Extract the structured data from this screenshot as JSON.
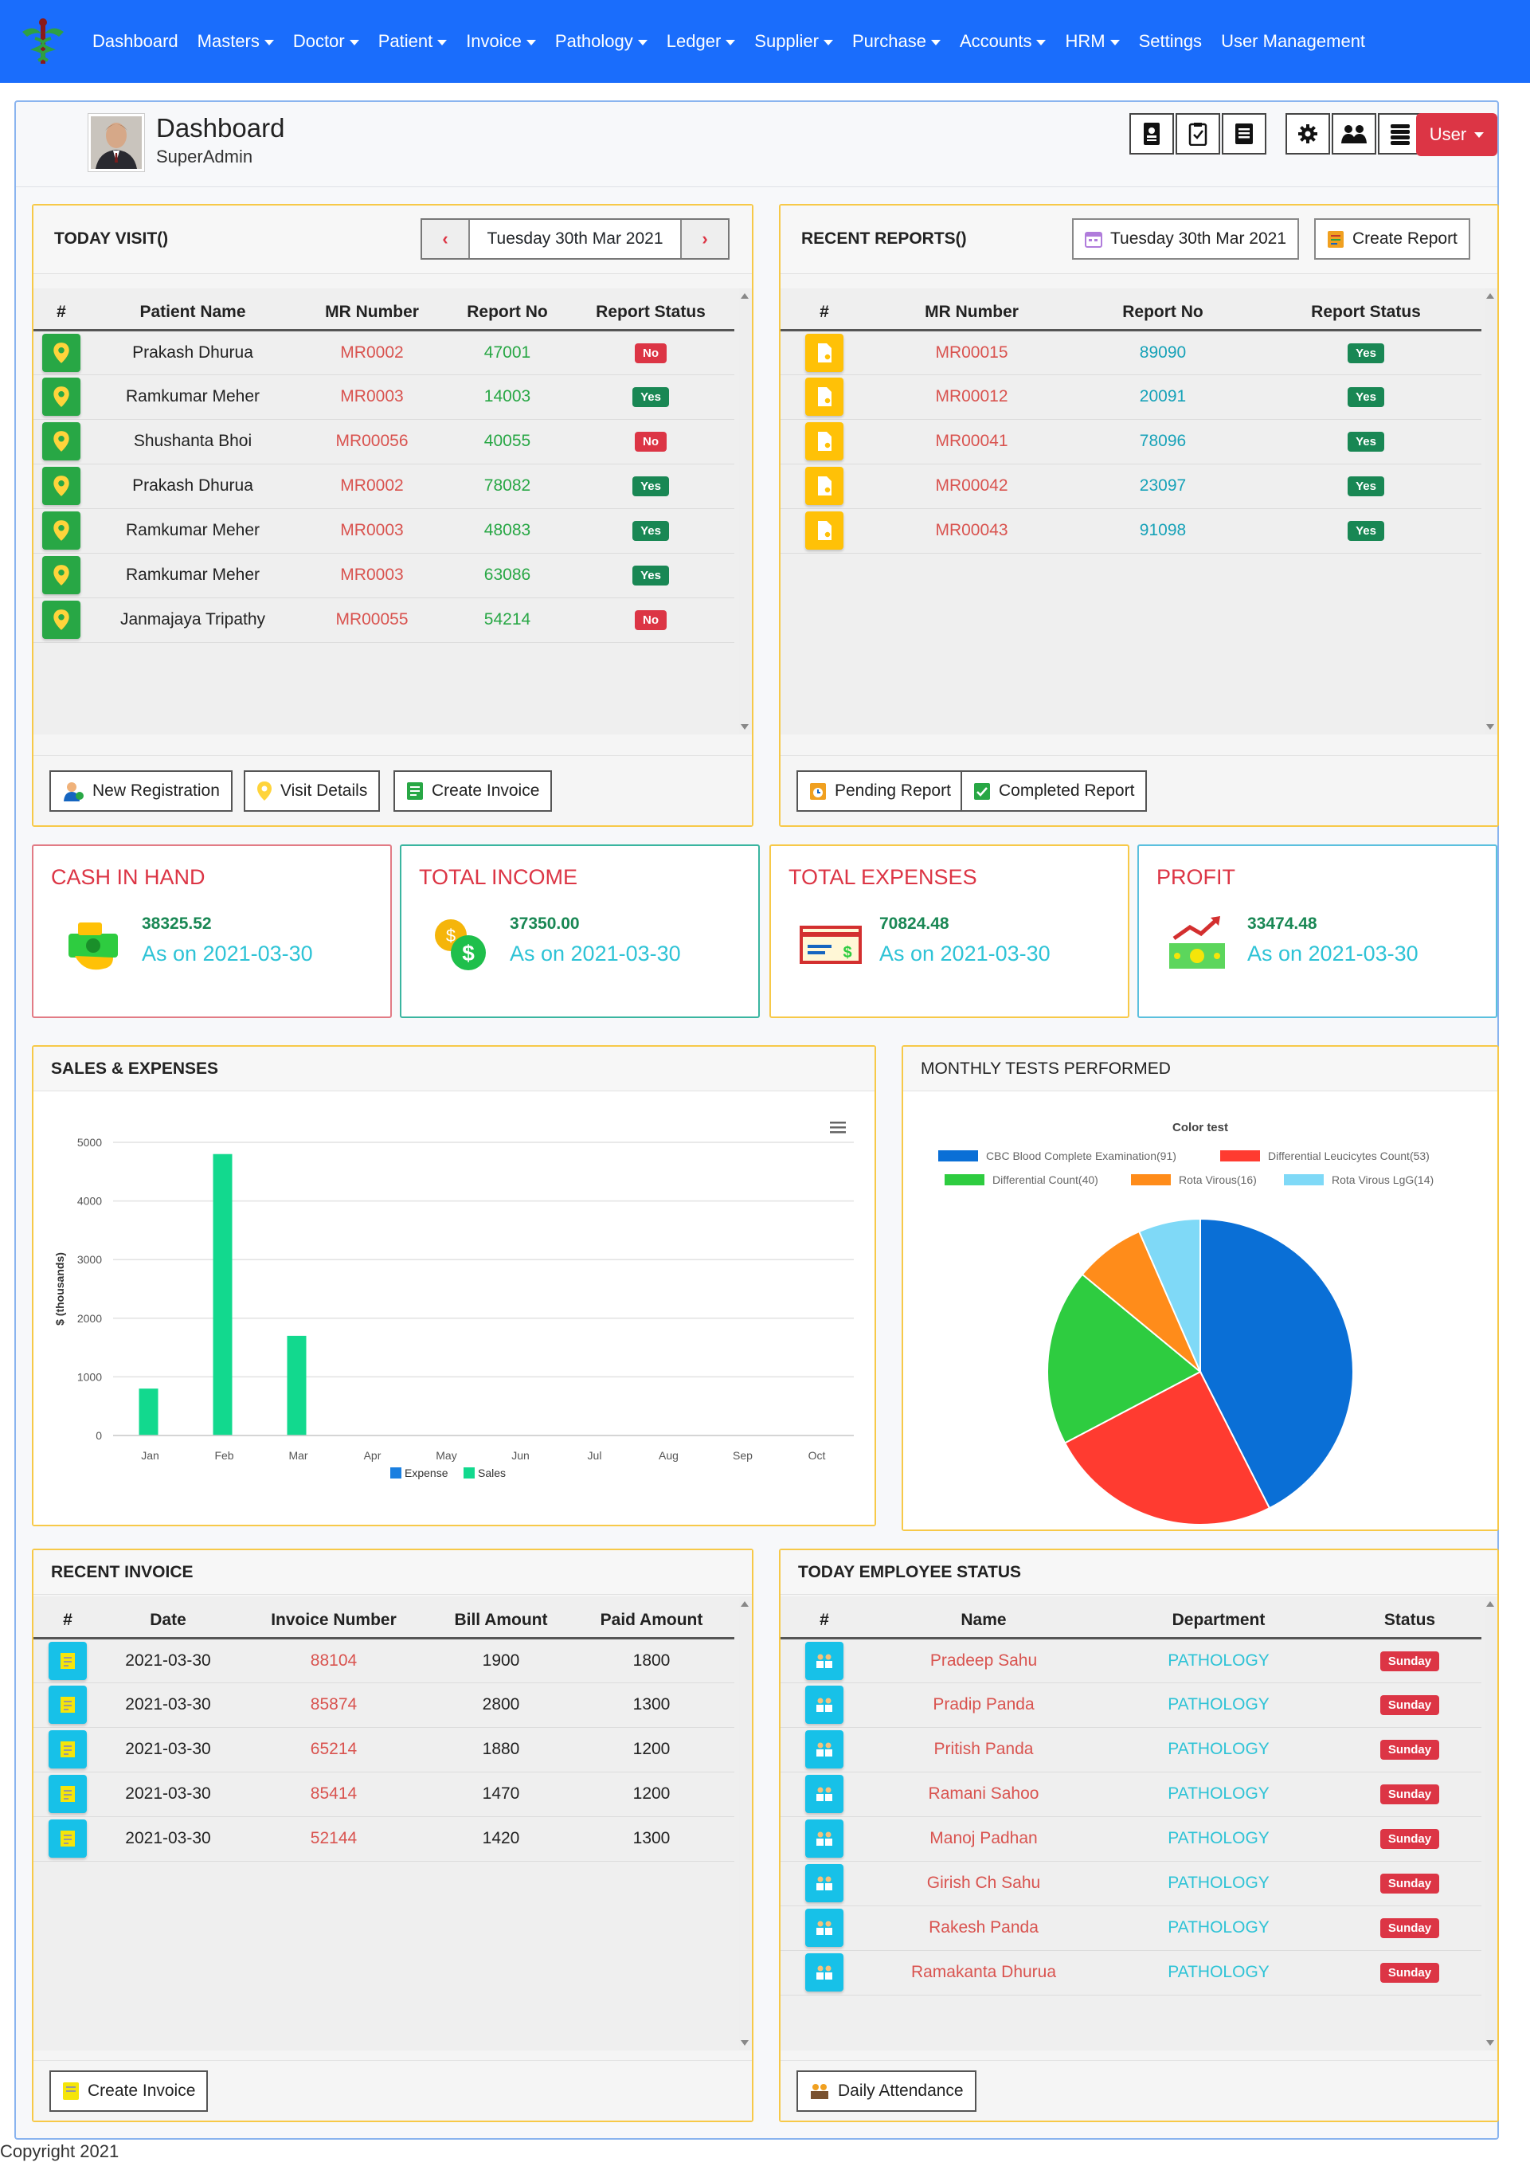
{
  "nav": {
    "items": [
      {
        "label": "Dashboard",
        "caret": false
      },
      {
        "label": "Masters",
        "caret": true
      },
      {
        "label": "Doctor",
        "caret": true
      },
      {
        "label": "Patient",
        "caret": true
      },
      {
        "label": "Invoice",
        "caret": true
      },
      {
        "label": "Pathology",
        "caret": true
      },
      {
        "label": "Ledger",
        "caret": true
      },
      {
        "label": "Supplier",
        "caret": true
      },
      {
        "label": "Purchase",
        "caret": true
      },
      {
        "label": "Accounts",
        "caret": true
      },
      {
        "label": "HRM",
        "caret": true
      },
      {
        "label": "Settings",
        "caret": false
      },
      {
        "label": "User Management",
        "caret": false
      }
    ]
  },
  "header": {
    "title": "Dashboard",
    "subtitle": "SuperAdmin",
    "user_label": "User"
  },
  "today_visit": {
    "title": "TODAY VISIT()",
    "date": "Tuesday 30th Mar 2021",
    "columns": [
      "#",
      "Patient Name",
      "MR Number",
      "Report No",
      "Report Status"
    ],
    "rows": [
      {
        "name": "Prakash Dhurua",
        "mr": "MR0002",
        "report": "47001",
        "status": "No"
      },
      {
        "name": "Ramkumar Meher",
        "mr": "MR0003",
        "report": "14003",
        "status": "Yes"
      },
      {
        "name": "Shushanta Bhoi",
        "mr": "MR00056",
        "report": "40055",
        "status": "No"
      },
      {
        "name": "Prakash Dhurua",
        "mr": "MR0002",
        "report": "78082",
        "status": "Yes"
      },
      {
        "name": "Ramkumar Meher",
        "mr": "MR0003",
        "report": "48083",
        "status": "Yes"
      },
      {
        "name": "Ramkumar Meher",
        "mr": "MR0003",
        "report": "63086",
        "status": "Yes"
      },
      {
        "name": "Janmajaya Tripathy",
        "mr": "MR00055",
        "report": "54214",
        "status": "No"
      }
    ],
    "buttons": {
      "new_registration": "New Registration",
      "visit_details": "Visit Details",
      "create_invoice": "Create Invoice"
    }
  },
  "recent_reports": {
    "title": "RECENT REPORTS()",
    "date": "Tuesday 30th Mar 2021",
    "create_report": "Create Report",
    "columns": [
      "#",
      "MR Number",
      "Report No",
      "Report Status"
    ],
    "rows": [
      {
        "mr": "MR00015",
        "report": "89090",
        "status": "Yes"
      },
      {
        "mr": "MR00012",
        "report": "20091",
        "status": "Yes"
      },
      {
        "mr": "MR00041",
        "report": "78096",
        "status": "Yes"
      },
      {
        "mr": "MR00042",
        "report": "23097",
        "status": "Yes"
      },
      {
        "mr": "MR00043",
        "report": "91098",
        "status": "Yes"
      }
    ],
    "buttons": {
      "pending": "Pending Report",
      "completed": "Completed Report"
    }
  },
  "stats": [
    {
      "title": "CASH IN HAND",
      "value": "38325.52",
      "date": "As on 2021-03-30",
      "color": "#dc3545",
      "border": "#e27b85"
    },
    {
      "title": "TOTAL INCOME",
      "value": "37350.00",
      "date": "As on 2021-03-30",
      "color": "#dc3545",
      "border": "#3ab5a0"
    },
    {
      "title": "TOTAL EXPENSES",
      "value": "70824.48",
      "date": "As on 2021-03-30",
      "color": "#dc3545",
      "border": "#f7c948"
    },
    {
      "title": "PROFIT",
      "value": "33474.48",
      "date": "As on 2021-03-30",
      "color": "#dc3545",
      "border": "#5bc0de"
    }
  ],
  "sales_panel": {
    "title": "SALES & EXPENSES"
  },
  "monthly_panel": {
    "title": "MONTHLY TESTS PERFORMED"
  },
  "chart_data": [
    {
      "type": "bar",
      "title": "",
      "ylabel": "$ (thousands)",
      "categories": [
        "Jan",
        "Feb",
        "Mar",
        "Apr",
        "May",
        "Jun",
        "Jul",
        "Aug",
        "Sep",
        "Oct"
      ],
      "ylim": [
        0,
        5000
      ],
      "yticks": [
        0,
        1000,
        2000,
        3000,
        4000,
        5000
      ],
      "grid": true,
      "legend_position": "bottom",
      "series": [
        {
          "name": "Expense",
          "color": "#1a7fe0",
          "values": [
            0,
            0,
            0,
            0,
            0,
            0,
            0,
            0,
            0,
            0
          ]
        },
        {
          "name": "Sales",
          "color": "#12d98e",
          "values": [
            800,
            4800,
            1700,
            0,
            0,
            0,
            0,
            0,
            0,
            0
          ]
        }
      ]
    },
    {
      "type": "pie",
      "title": "Color test",
      "legend_position": "top",
      "labels": [
        "CBC Blood Complete Examination(91)",
        "Differential Leucicytes Count(53)",
        "Differential Count(40)",
        "Rota Virous(16)",
        "Rota Virous LgG(14)"
      ],
      "values": [
        91,
        53,
        40,
        16,
        14
      ],
      "colors": [
        "#0a6fd6",
        "#ff3b30",
        "#2ecc40",
        "#ff8c1a",
        "#7fd9f7"
      ]
    }
  ],
  "recent_invoice": {
    "title": "RECENT INVOICE",
    "columns": [
      "#",
      "Date",
      "Invoice Number",
      "Bill Amount",
      "Paid Amount"
    ],
    "rows": [
      {
        "date": "2021-03-30",
        "invoice": "88104",
        "bill": "1900",
        "paid": "1800"
      },
      {
        "date": "2021-03-30",
        "invoice": "85874",
        "bill": "2800",
        "paid": "1300"
      },
      {
        "date": "2021-03-30",
        "invoice": "65214",
        "bill": "1880",
        "paid": "1200"
      },
      {
        "date": "2021-03-30",
        "invoice": "85414",
        "bill": "1470",
        "paid": "1200"
      },
      {
        "date": "2021-03-30",
        "invoice": "52144",
        "bill": "1420",
        "paid": "1300"
      }
    ],
    "create_invoice": "Create Invoice"
  },
  "employee_status": {
    "title": "TODAY EMPLOYEE STATUS",
    "columns": [
      "#",
      "Name",
      "Department",
      "Status"
    ],
    "rows": [
      {
        "name": "Pradeep Sahu",
        "dept": "PATHOLOGY",
        "status": "Sunday"
      },
      {
        "name": "Pradip Panda",
        "dept": "PATHOLOGY",
        "status": "Sunday"
      },
      {
        "name": "Pritish Panda",
        "dept": "PATHOLOGY",
        "status": "Sunday"
      },
      {
        "name": "Ramani Sahoo",
        "dept": "PATHOLOGY",
        "status": "Sunday"
      },
      {
        "name": "Manoj Padhan",
        "dept": "PATHOLOGY",
        "status": "Sunday"
      },
      {
        "name": "Girish Ch Sahu",
        "dept": "PATHOLOGY",
        "status": "Sunday"
      },
      {
        "name": "Rakesh Panda",
        "dept": "PATHOLOGY",
        "status": "Sunday"
      },
      {
        "name": "Ramakanta Dhurua",
        "dept": "PATHOLOGY",
        "status": "Sunday"
      }
    ],
    "daily_attendance": "Daily Attendance"
  },
  "footer": {
    "copyright": "Copyright 2021"
  }
}
